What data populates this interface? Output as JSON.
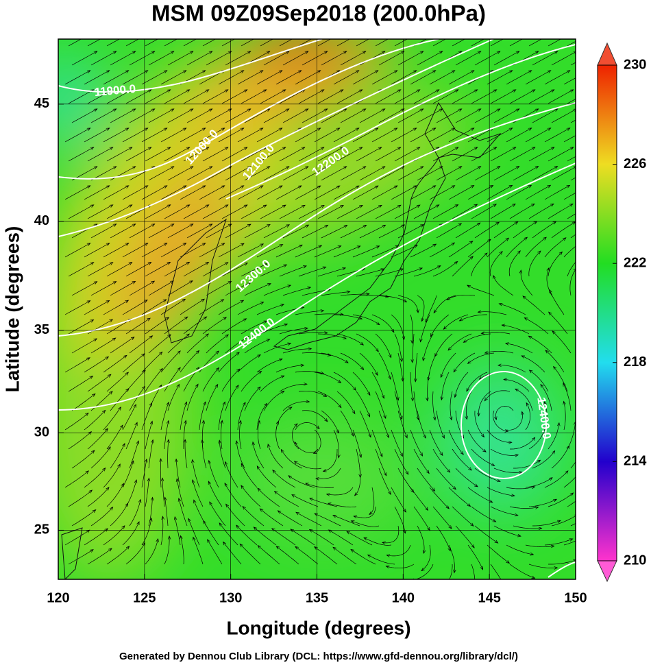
{
  "header": {
    "title": "MSM 09Z09Sep2018 (200.0hPa)"
  },
  "map": {
    "xlabel": "Longitude (degrees)",
    "ylabel": "Latitude  (degrees)",
    "projection": "mercator",
    "xlim": [
      120,
      150
    ],
    "ylim": [
      22.4,
      47.6
    ],
    "xticks": [
      120,
      125,
      130,
      135,
      140,
      145,
      150
    ],
    "yticks": [
      25,
      30,
      35,
      40,
      45
    ],
    "grid": true,
    "contour_labels": [
      "11900.0",
      "12000.0",
      "12100.0",
      "12200.0",
      "12300.0",
      "12400.0",
      "12400.0"
    ]
  },
  "colorbar": {
    "lim": [
      210,
      230
    ],
    "ticks": [
      210,
      214,
      218,
      222,
      226,
      230
    ],
    "colors": [
      "#ff33cc",
      "#2200cc",
      "#22ddee",
      "#22dd22",
      "#eedd22",
      "#ee2200"
    ]
  },
  "footer": "Generated by Dennou Club Library (DCL: https://www.gfd-dennou.org/library/dcl/)"
}
